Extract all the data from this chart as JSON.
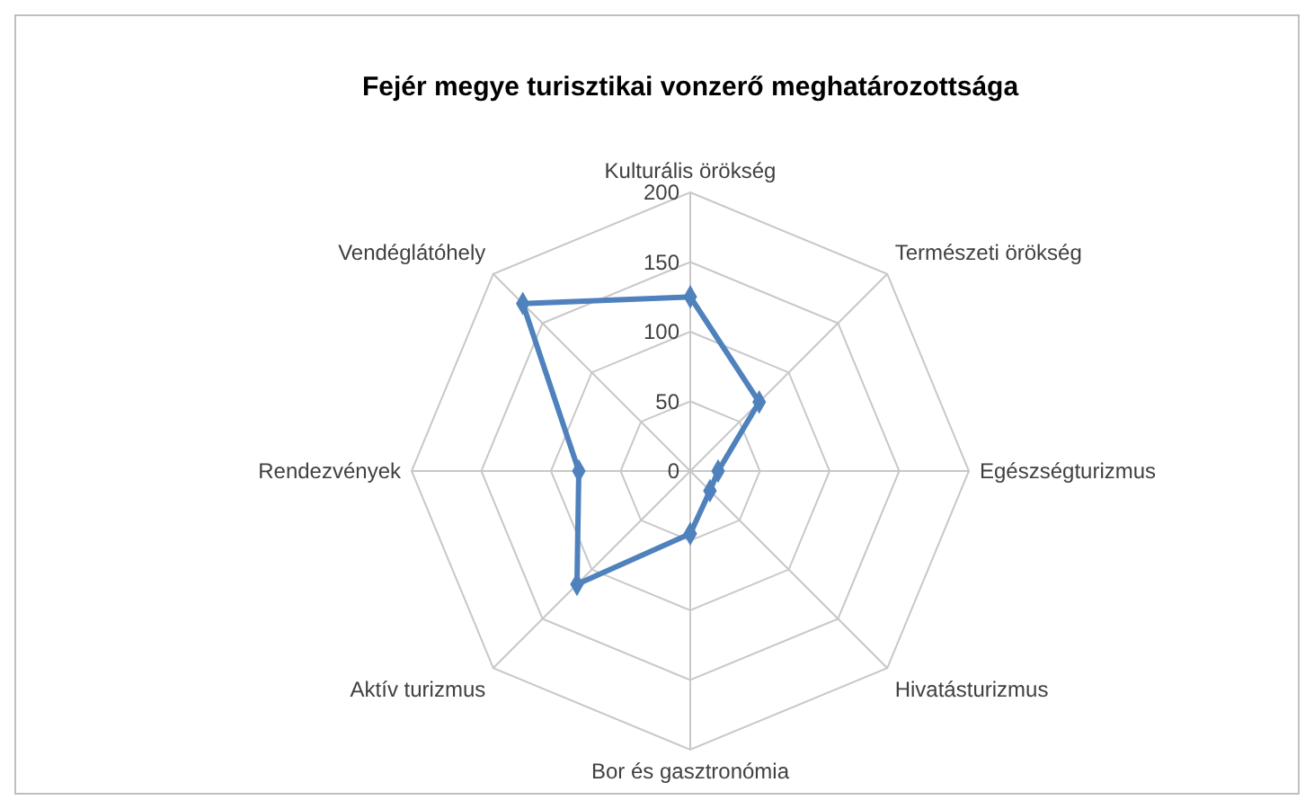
{
  "chart_data": {
    "type": "radar",
    "title": "Fejér megye turisztikai vonzerő meghatározottsága",
    "categories": [
      "Kulturális örökség",
      "Természeti örökség",
      "Egészségturizmus",
      "Hivatásturizmus",
      "Bor és gasztronómia",
      "Aktív turizmus",
      "Rendezvények",
      "Vendéglátóhely"
    ],
    "series": [
      {
        "color": "#4f81bd",
        "values": [
          125,
          70,
          20,
          20,
          45,
          115,
          80,
          170
        ]
      }
    ],
    "ylim": [
      0,
      200
    ],
    "yticks": [
      0,
      50,
      100,
      150,
      200
    ],
    "grid": true,
    "marker": "diamond"
  }
}
